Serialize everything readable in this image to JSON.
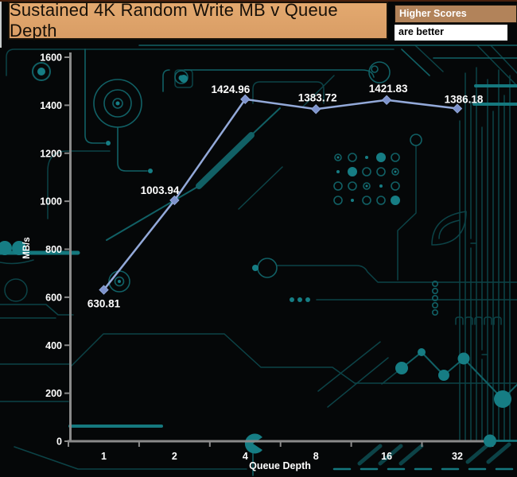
{
  "header": {
    "title": "Sustained 4K Random Write MB v Queue Depth",
    "legend": {
      "line1": "Higher Scores",
      "line2": "are better"
    }
  },
  "colors": {
    "title_box_bg": "#d99d65",
    "legend_higher_bg": "#b2835a",
    "legend_better_bg": "#ffffff",
    "background": "#050708",
    "circuit_trace": "#116065",
    "circuit_bright": "#167d84",
    "line": "#93a9d9",
    "marker": "#7d92cc",
    "axis": "#8a8a8a",
    "text": "#ffffff"
  },
  "chart_data": {
    "type": "line",
    "title": "Sustained 4K Random Write MB v Queue Depth",
    "categories": [
      "1",
      "2",
      "4",
      "8",
      "16",
      "32"
    ],
    "series": [
      {
        "name": "Sustained 4K Random Write MB/s",
        "values": [
          630.81,
          1003.94,
          1424.96,
          1383.72,
          1421.83,
          1386.18
        ]
      }
    ],
    "data_labels": [
      "630.81",
      "1003.94",
      "1424.96",
      "1383.72",
      "1421.83",
      "1386.18"
    ],
    "xlabel": "Queue Depth",
    "ylabel": "MB/s",
    "ylim": [
      0,
      1600
    ],
    "yticks": [
      0,
      200,
      400,
      600,
      800,
      1000,
      1200,
      1400,
      1600
    ],
    "grid": false,
    "legend_position": "none",
    "marker_shape": "diamond",
    "annotations": {
      "higher_scores": "Higher Scores",
      "are_better": "are better"
    }
  }
}
